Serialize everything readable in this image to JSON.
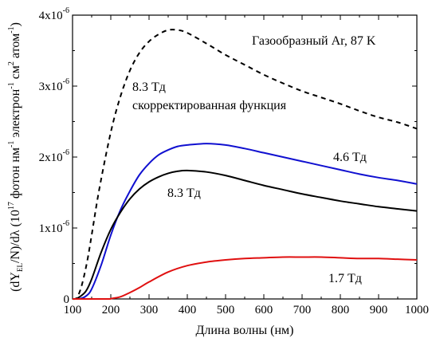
{
  "chart_data": {
    "type": "line",
    "title": "",
    "xlabel": "Длина волны (нм)",
    "ylabel": {
      "open": "(dY",
      "sub": "EL",
      "mid": "/N)/dλ (10",
      "sup1": "17",
      "unit": " фотон нм",
      "sup2": "-1",
      "unit2": " электрон",
      "sup3": "-1",
      "unit3": " см",
      "sup4": "2",
      "unit4": " атом",
      "sup5": "-1",
      "close": ")"
    },
    "xlim": [
      100,
      1000
    ],
    "ylim": [
      0,
      4e-06
    ],
    "xticks": [
      100,
      200,
      300,
      400,
      500,
      600,
      700,
      800,
      900,
      1000
    ],
    "yticks": [
      {
        "value": 0,
        "base": "0",
        "exp": ""
      },
      {
        "value": 1e-06,
        "base": "1x10",
        "exp": "-6"
      },
      {
        "value": 2e-06,
        "base": "2x10",
        "exp": "-6"
      },
      {
        "value": 3e-06,
        "base": "3x10",
        "exp": "-6"
      },
      {
        "value": 4e-06,
        "base": "4x10",
        "exp": "-6"
      }
    ],
    "grid": false,
    "legend": "none",
    "series": [
      {
        "label_line1": "8.3 Тд",
        "label_line2": "скорректированная функция",
        "color": "#000000",
        "dash": true,
        "points": [
          [
            100,
            0
          ],
          [
            110,
            1e-08
          ],
          [
            120,
            1.2e-07
          ],
          [
            130,
            3.2e-07
          ],
          [
            140,
            5.8e-07
          ],
          [
            150,
            9e-07
          ],
          [
            170,
            1.55e-06
          ],
          [
            200,
            2.35e-06
          ],
          [
            225,
            2.85e-06
          ],
          [
            250,
            3.22e-06
          ],
          [
            275,
            3.47e-06
          ],
          [
            300,
            3.63e-06
          ],
          [
            325,
            3.73e-06
          ],
          [
            350,
            3.79e-06
          ],
          [
            375,
            3.79e-06
          ],
          [
            400,
            3.75e-06
          ],
          [
            450,
            3.6e-06
          ],
          [
            500,
            3.44e-06
          ],
          [
            550,
            3.3e-06
          ],
          [
            600,
            3.16e-06
          ],
          [
            650,
            3.04e-06
          ],
          [
            700,
            2.93e-06
          ],
          [
            750,
            2.84e-06
          ],
          [
            800,
            2.75e-06
          ],
          [
            850,
            2.65e-06
          ],
          [
            900,
            2.56e-06
          ],
          [
            950,
            2.49e-06
          ],
          [
            1000,
            2.4e-06
          ]
        ]
      },
      {
        "label": "4.6 Тд",
        "color": "#1010d0",
        "dash": false,
        "points": [
          [
            100,
            0
          ],
          [
            120,
            5e-09
          ],
          [
            135,
            4e-08
          ],
          [
            150,
            1.4e-07
          ],
          [
            175,
            4.8e-07
          ],
          [
            200,
            9e-07
          ],
          [
            225,
            1.25e-06
          ],
          [
            250,
            1.52e-06
          ],
          [
            275,
            1.75e-06
          ],
          [
            300,
            1.91e-06
          ],
          [
            325,
            2.03e-06
          ],
          [
            350,
            2.1e-06
          ],
          [
            375,
            2.15e-06
          ],
          [
            400,
            2.17e-06
          ],
          [
            450,
            2.19e-06
          ],
          [
            500,
            2.17e-06
          ],
          [
            550,
            2.12e-06
          ],
          [
            600,
            2.06e-06
          ],
          [
            650,
            2e-06
          ],
          [
            700,
            1.94e-06
          ],
          [
            750,
            1.88e-06
          ],
          [
            800,
            1.82e-06
          ],
          [
            850,
            1.76e-06
          ],
          [
            900,
            1.71e-06
          ],
          [
            950,
            1.67e-06
          ],
          [
            1000,
            1.62e-06
          ]
        ]
      },
      {
        "label": "8.3 Тд",
        "color": "#000000",
        "dash": false,
        "points": [
          [
            100,
            0
          ],
          [
            110,
            5e-09
          ],
          [
            120,
            3.5e-08
          ],
          [
            135,
            1.1e-07
          ],
          [
            150,
            2.8e-07
          ],
          [
            175,
            6.6e-07
          ],
          [
            200,
            9.8e-07
          ],
          [
            225,
            1.22e-06
          ],
          [
            250,
            1.41e-06
          ],
          [
            275,
            1.55e-06
          ],
          [
            300,
            1.65e-06
          ],
          [
            325,
            1.72e-06
          ],
          [
            350,
            1.77e-06
          ],
          [
            375,
            1.8e-06
          ],
          [
            400,
            1.81e-06
          ],
          [
            450,
            1.79e-06
          ],
          [
            500,
            1.74e-06
          ],
          [
            550,
            1.67e-06
          ],
          [
            600,
            1.6e-06
          ],
          [
            650,
            1.54e-06
          ],
          [
            700,
            1.48e-06
          ],
          [
            750,
            1.43e-06
          ],
          [
            800,
            1.38e-06
          ],
          [
            850,
            1.34e-06
          ],
          [
            900,
            1.3e-06
          ],
          [
            950,
            1.27e-06
          ],
          [
            1000,
            1.24e-06
          ]
        ]
      },
      {
        "label": "1.7 Тд",
        "color": "#e01010",
        "dash": false,
        "points": [
          [
            100,
            0
          ],
          [
            190,
            0
          ],
          [
            200,
            5e-09
          ],
          [
            225,
            3e-08
          ],
          [
            250,
            9e-08
          ],
          [
            275,
            1.6e-07
          ],
          [
            300,
            2.4e-07
          ],
          [
            350,
            3.8e-07
          ],
          [
            400,
            4.7e-07
          ],
          [
            450,
            5.2e-07
          ],
          [
            500,
            5.5e-07
          ],
          [
            550,
            5.7e-07
          ],
          [
            600,
            5.8e-07
          ],
          [
            650,
            5.9e-07
          ],
          [
            700,
            5.9e-07
          ],
          [
            750,
            5.9e-07
          ],
          [
            800,
            5.8e-07
          ],
          [
            850,
            5.7e-07
          ],
          [
            900,
            5.7e-07
          ],
          [
            950,
            5.6e-07
          ],
          [
            1000,
            5.5e-07
          ]
        ]
      }
    ],
    "annotation": "Газообразный Ar, 87 K"
  }
}
